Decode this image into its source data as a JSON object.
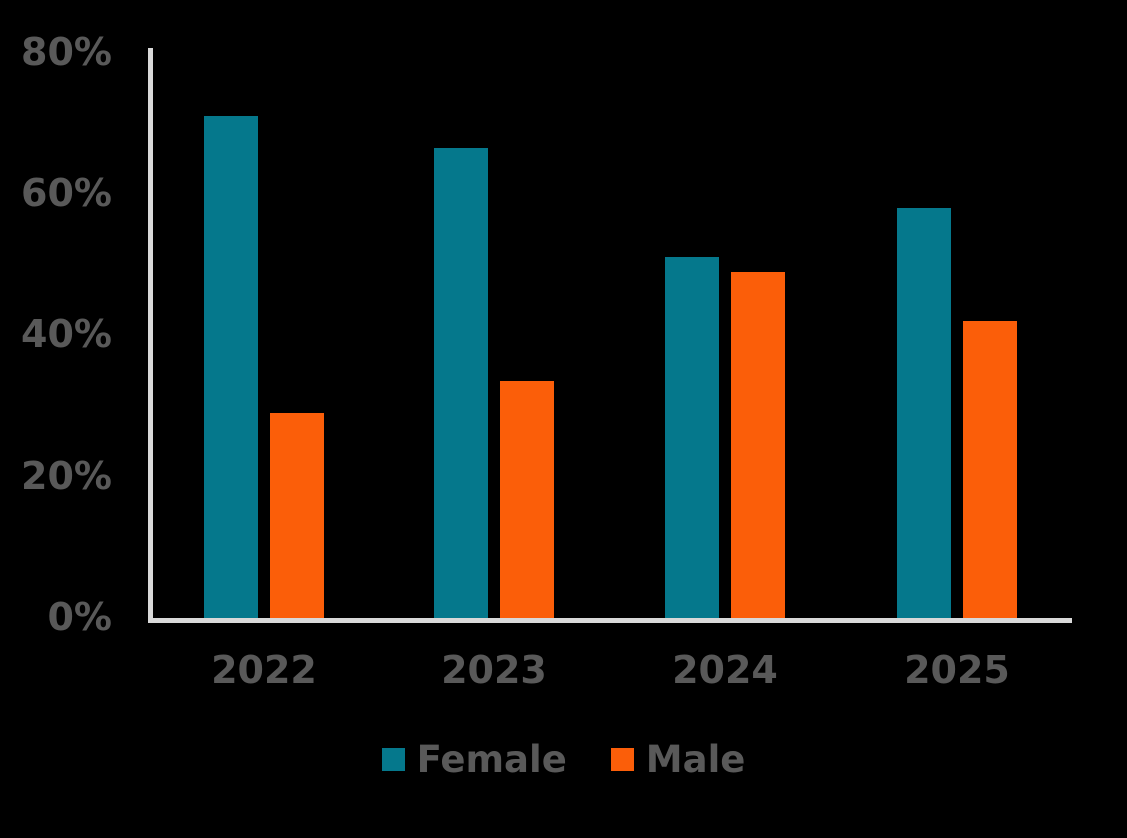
{
  "chart_data": {
    "type": "bar",
    "title": "",
    "categories": [
      "2022",
      "2023",
      "2024",
      "2025"
    ],
    "series": [
      {
        "name": "Female",
        "color": "#05788C",
        "values": [
          71,
          66.5,
          51,
          58
        ]
      },
      {
        "name": "Male",
        "color": "#FB5E09",
        "values": [
          29,
          33.5,
          49,
          42
        ]
      }
    ],
    "xlabel": "",
    "ylabel": "",
    "ylim": [
      0,
      80
    ],
    "yticks": [
      0,
      20,
      40,
      60,
      80
    ],
    "ytick_suffix": "%",
    "grid": false,
    "legend_position": "bottom"
  },
  "colors": {
    "female_bar": "#05788C",
    "male_bar": "#FB5E09",
    "axis_line": "#D9D9D9",
    "label_text": "#595959",
    "background": "#000000"
  }
}
